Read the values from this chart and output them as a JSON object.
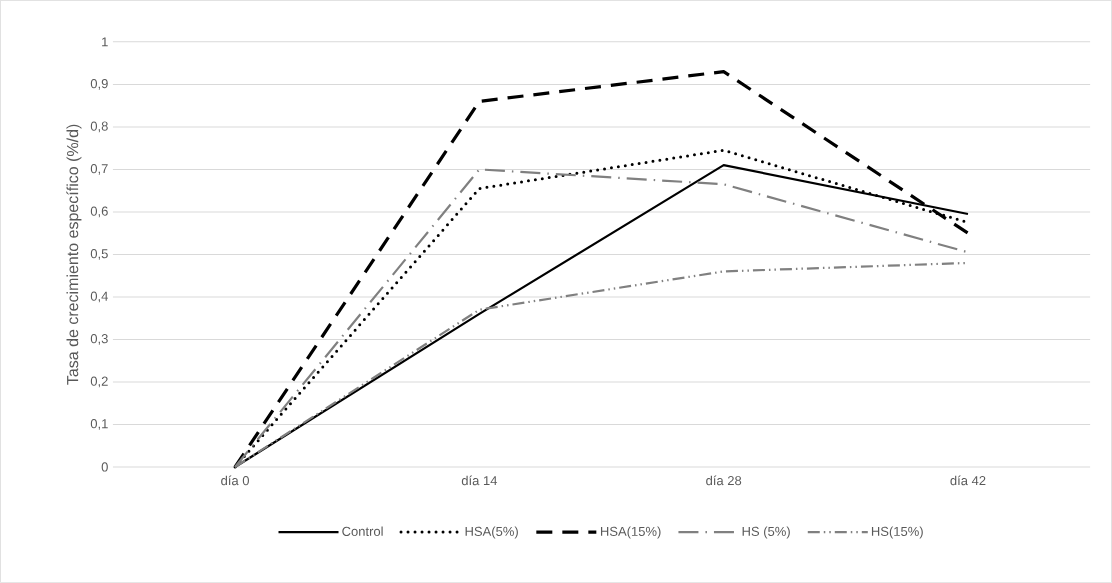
{
  "chart_data": {
    "type": "line",
    "ylabel": "Tasa de crecimiento específico (%/d)",
    "categories": [
      "día 0",
      "día 14",
      "día 28",
      "día 42"
    ],
    "series": [
      {
        "name": "Control",
        "color": "#000000",
        "line_style": "solid",
        "values": [
          0,
          0.36,
          0.71,
          0.595
        ]
      },
      {
        "name": "HSA(5%)",
        "color": "#000000",
        "line_style": "dotted",
        "values": [
          0,
          0.655,
          0.745,
          0.575
        ]
      },
      {
        "name": "HSA(15%)",
        "color": "#000000",
        "line_style": "dashed",
        "values": [
          0,
          0.86,
          0.93,
          0.55
        ]
      },
      {
        "name": "HS (5%)",
        "color": "#808080",
        "line_style": "dashdot",
        "values": [
          0,
          0.7,
          0.665,
          0.505
        ]
      },
      {
        "name": "HS(15%)",
        "color": "#808080",
        "line_style": "dashdotdot",
        "values": [
          0,
          0.37,
          0.46,
          0.48
        ]
      }
    ],
    "ylim": [
      0,
      1
    ],
    "yticks": [
      {
        "value": 0,
        "label": "0"
      },
      {
        "value": 0.1,
        "label": "0,1"
      },
      {
        "value": 0.2,
        "label": "0,2"
      },
      {
        "value": 0.3,
        "label": "0,3"
      },
      {
        "value": 0.4,
        "label": "0,4"
      },
      {
        "value": 0.5,
        "label": "0,5"
      },
      {
        "value": 0.6,
        "label": "0,6"
      },
      {
        "value": 0.7,
        "label": "0,7"
      },
      {
        "value": 0.8,
        "label": "0,8"
      },
      {
        "value": 0.9,
        "label": "0,9"
      },
      {
        "value": 1,
        "label": "1"
      }
    ],
    "grid": "y",
    "legend": "bottom",
    "marker": "none"
  }
}
